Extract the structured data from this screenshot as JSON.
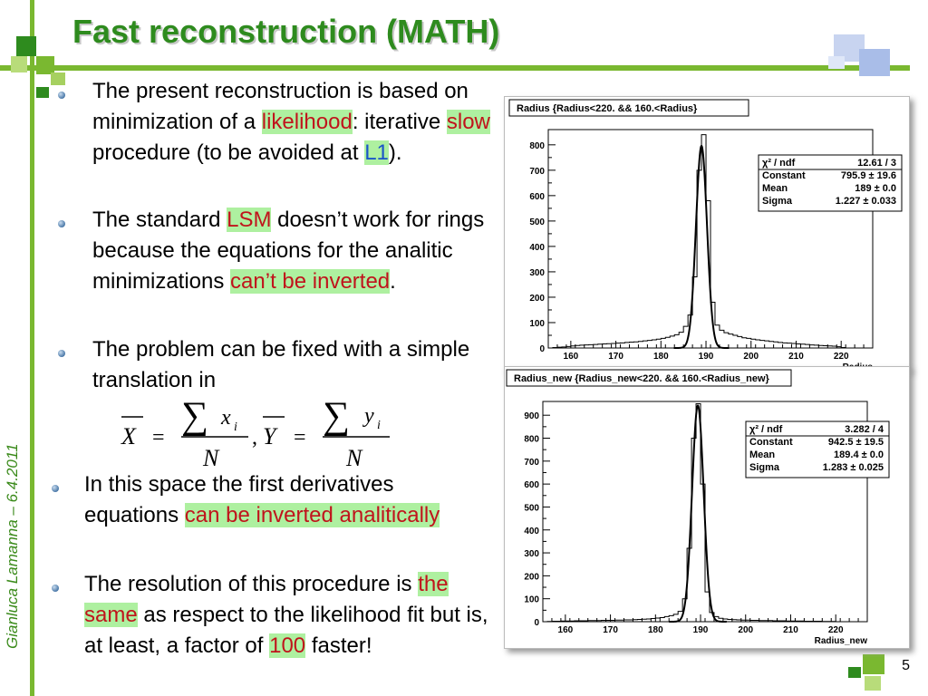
{
  "slide": {
    "title": "Fast reconstruction (MATH)",
    "author_date": "Gianluca Lamanna – 6.4.2011",
    "page_number": "5"
  },
  "bullets": [
    {
      "parts": [
        {
          "t": "The present reconstruction is based on minimization of a ",
          "s": "plain"
        },
        {
          "t": "likelihood",
          "s": "red"
        },
        {
          "t": ": iterative ",
          "s": "plain"
        },
        {
          "t": "slow",
          "s": "red"
        },
        {
          "t": " procedure (to be avoided at ",
          "s": "plain"
        },
        {
          "t": "L1",
          "s": "blue"
        },
        {
          "t": ").",
          "s": "plain"
        }
      ]
    },
    {
      "parts": [
        {
          "t": "The standard ",
          "s": "plain"
        },
        {
          "t": "LSM",
          "s": "red"
        },
        {
          "t": " doesn’t work for rings because the equations for the analitic minimizations ",
          "s": "plain"
        },
        {
          "t": "can’t be inverted",
          "s": "red"
        },
        {
          "t": ".",
          "s": "plain"
        }
      ]
    },
    {
      "parts": [
        {
          "t": "The problem can be fixed with a simple translation in",
          "s": "plain"
        }
      ]
    },
    {
      "parts": [
        {
          "t": "In this space the first derivatives equations ",
          "s": "plain"
        },
        {
          "t": "can be inverted analitically",
          "s": "red"
        }
      ]
    },
    {
      "parts": [
        {
          "t": "The resolution of this procedure is ",
          "s": "plain"
        },
        {
          "t": "the same",
          "s": "red"
        },
        {
          "t": " as respect to the likelihood fit but is, at least, a factor of ",
          "s": "plain"
        },
        {
          "t": "100",
          "s": "red"
        },
        {
          "t": " faster!",
          "s": "plain"
        }
      ]
    }
  ],
  "formula": {
    "x_bar": "X",
    "y_bar": "Y",
    "equals": "=",
    "sum": "∑",
    "x_i": "x",
    "y_i": "y",
    "sub_i": "i",
    "denominator": "N",
    "comma": ","
  },
  "chart_data": [
    {
      "type": "histogram",
      "title": "Radius {Radius<220. && 160.<Radius}",
      "xlabel": "Radius",
      "xlim": [
        155,
        227
      ],
      "ylim": [
        0,
        860
      ],
      "xticks": [
        "160",
        "170",
        "180",
        "190",
        "200",
        "210",
        "220"
      ],
      "yticks": [
        "0",
        "100",
        "200",
        "300",
        "400",
        "500",
        "600",
        "700",
        "800"
      ],
      "stats": [
        {
          "label": "χ² / ndf",
          "value": "12.61 / 3"
        },
        {
          "label": "Constant",
          "value": "795.9 ± 19.6"
        },
        {
          "label": "Mean",
          "value": "189 ± 0.0"
        },
        {
          "label": "Sigma",
          "value": "1.227 ± 0.033"
        }
      ],
      "fit": {
        "constant": 795.9,
        "mean": 189,
        "sigma": 1.227
      },
      "bins": [
        [
          155,
          0
        ],
        [
          156,
          2
        ],
        [
          157,
          3
        ],
        [
          158,
          4
        ],
        [
          159,
          6
        ],
        [
          160,
          8
        ],
        [
          161,
          10
        ],
        [
          162,
          11
        ],
        [
          163,
          12
        ],
        [
          164,
          13
        ],
        [
          165,
          14
        ],
        [
          166,
          15
        ],
        [
          167,
          16
        ],
        [
          168,
          17
        ],
        [
          169,
          18
        ],
        [
          170,
          19
        ],
        [
          171,
          20
        ],
        [
          172,
          22
        ],
        [
          173,
          23
        ],
        [
          174,
          24
        ],
        [
          175,
          26
        ],
        [
          176,
          28
        ],
        [
          177,
          30
        ],
        [
          178,
          32
        ],
        [
          179,
          35
        ],
        [
          180,
          38
        ],
        [
          181,
          42
        ],
        [
          182,
          47
        ],
        [
          183,
          52
        ],
        [
          184,
          62
        ],
        [
          185,
          85
        ],
        [
          186,
          130
        ],
        [
          187,
          280
        ],
        [
          188,
          700
        ],
        [
          189,
          840
        ],
        [
          190,
          580
        ],
        [
          191,
          180
        ],
        [
          192,
          90
        ],
        [
          193,
          70
        ],
        [
          194,
          60
        ],
        [
          195,
          55
        ],
        [
          196,
          50
        ],
        [
          197,
          45
        ],
        [
          198,
          40
        ],
        [
          199,
          38
        ],
        [
          200,
          35
        ],
        [
          201,
          32
        ],
        [
          202,
          30
        ],
        [
          203,
          28
        ],
        [
          204,
          26
        ],
        [
          205,
          24
        ],
        [
          206,
          22
        ],
        [
          207,
          20
        ],
        [
          208,
          19
        ],
        [
          209,
          18
        ],
        [
          210,
          16
        ],
        [
          211,
          15
        ],
        [
          212,
          14
        ],
        [
          213,
          12
        ],
        [
          214,
          11
        ],
        [
          215,
          10
        ],
        [
          216,
          9
        ],
        [
          217,
          8
        ],
        [
          218,
          7
        ],
        [
          219,
          5
        ],
        [
          220,
          2
        ]
      ]
    },
    {
      "type": "histogram",
      "title": "Radius_new {Radius_new<220. && 160.<Radius_new}",
      "xlabel": "Radius_new",
      "xlim": [
        155,
        227
      ],
      "ylim": [
        0,
        960
      ],
      "xticks": [
        "160",
        "170",
        "180",
        "190",
        "200",
        "210",
        "220"
      ],
      "yticks": [
        "0",
        "100",
        "200",
        "300",
        "400",
        "500",
        "600",
        "700",
        "800",
        "900"
      ],
      "stats": [
        {
          "label": "χ² / ndf",
          "value": "3.282 / 4"
        },
        {
          "label": "Constant",
          "value": "942.5 ± 19.5"
        },
        {
          "label": "Mean",
          "value": "189.4 ± 0.0"
        },
        {
          "label": "Sigma",
          "value": "1.283 ± 0.025"
        }
      ],
      "fit": {
        "constant": 942.5,
        "mean": 189.4,
        "sigma": 1.283
      },
      "bins": [
        [
          155,
          0
        ],
        [
          156,
          1
        ],
        [
          157,
          2
        ],
        [
          158,
          2
        ],
        [
          159,
          3
        ],
        [
          160,
          3
        ],
        [
          161,
          3
        ],
        [
          162,
          4
        ],
        [
          163,
          4
        ],
        [
          164,
          4
        ],
        [
          165,
          5
        ],
        [
          166,
          5
        ],
        [
          167,
          5
        ],
        [
          168,
          6
        ],
        [
          169,
          6
        ],
        [
          170,
          6
        ],
        [
          171,
          7
        ],
        [
          172,
          7
        ],
        [
          173,
          8
        ],
        [
          174,
          8
        ],
        [
          175,
          9
        ],
        [
          176,
          10
        ],
        [
          177,
          11
        ],
        [
          178,
          12
        ],
        [
          179,
          14
        ],
        [
          180,
          16
        ],
        [
          181,
          18
        ],
        [
          182,
          22
        ],
        [
          183,
          26
        ],
        [
          184,
          32
        ],
        [
          185,
          45
        ],
        [
          186,
          100
        ],
        [
          187,
          320
        ],
        [
          188,
          800
        ],
        [
          189,
          950
        ],
        [
          190,
          600
        ],
        [
          191,
          130
        ],
        [
          192,
          40
        ],
        [
          193,
          22
        ],
        [
          194,
          15
        ],
        [
          195,
          12
        ],
        [
          196,
          10
        ],
        [
          197,
          9
        ],
        [
          198,
          8
        ],
        [
          199,
          7
        ],
        [
          200,
          7
        ],
        [
          201,
          6
        ],
        [
          202,
          6
        ],
        [
          203,
          5
        ],
        [
          204,
          5
        ],
        [
          205,
          5
        ],
        [
          206,
          4
        ],
        [
          207,
          4
        ],
        [
          208,
          4
        ],
        [
          209,
          3
        ],
        [
          210,
          3
        ],
        [
          211,
          3
        ],
        [
          212,
          3
        ],
        [
          213,
          2
        ],
        [
          214,
          2
        ],
        [
          215,
          2
        ],
        [
          216,
          2
        ],
        [
          217,
          1
        ],
        [
          218,
          1
        ],
        [
          219,
          1
        ],
        [
          220,
          0
        ]
      ]
    }
  ]
}
